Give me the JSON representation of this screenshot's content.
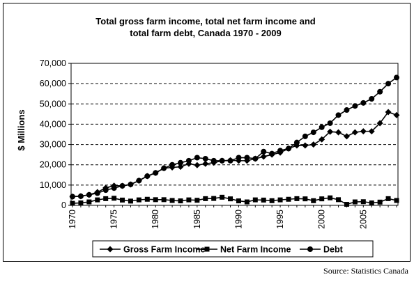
{
  "chart_data": {
    "type": "line",
    "title_lines": [
      "Total gross farm income, total net farm income and",
      "total farm debt, Canada 1970 - 2009"
    ],
    "ylabel": "$ Millions",
    "xlabel": "",
    "ylim": [
      0,
      70000
    ],
    "yticks": [
      0,
      10000,
      20000,
      30000,
      40000,
      50000,
      60000,
      70000
    ],
    "ytick_labels": [
      "0",
      "10,000",
      "20,000",
      "30,000",
      "40,000",
      "50,000",
      "60,000",
      "70,000"
    ],
    "xlim": [
      1970,
      2009
    ],
    "xticks": [
      1970,
      1975,
      1980,
      1985,
      1990,
      1995,
      2000,
      2005
    ],
    "xtick_labels": [
      "1970",
      "1975",
      "1980",
      "1985",
      "1990",
      "1995",
      "2000",
      "2005"
    ],
    "grid": "horizontal dashed",
    "legend_position": "bottom",
    "x": [
      1970,
      1971,
      1972,
      1973,
      1974,
      1975,
      1976,
      1977,
      1978,
      1979,
      1980,
      1981,
      1982,
      1983,
      1984,
      1985,
      1986,
      1987,
      1988,
      1989,
      1990,
      1991,
      1992,
      1993,
      1994,
      1995,
      1996,
      1997,
      1998,
      1999,
      2000,
      2001,
      2002,
      2003,
      2004,
      2005,
      2006,
      2007,
      2008,
      2009
    ],
    "series": [
      {
        "name": "Gross Farm Income",
        "marker": "diamond",
        "values": [
          4300,
          4500,
          5200,
          6500,
          8600,
          9700,
          9600,
          10300,
          12200,
          14400,
          16000,
          18300,
          18700,
          19000,
          20500,
          19800,
          20500,
          21000,
          22000,
          22200,
          22000,
          22000,
          23000,
          24000,
          25000,
          26000,
          28000,
          29500,
          29500,
          30000,
          32500,
          36300,
          36000,
          34000,
          36000,
          36500,
          36500,
          40500,
          46000,
          44500
        ]
      },
      {
        "name": "Net Farm Income",
        "marker": "square",
        "values": [
          1000,
          1200,
          1700,
          2700,
          3300,
          3500,
          2600,
          2100,
          2700,
          3000,
          2800,
          2800,
          2400,
          2200,
          2700,
          2500,
          3300,
          3400,
          4000,
          3200,
          2200,
          1700,
          2700,
          2600,
          2300,
          2700,
          3000,
          3300,
          3200,
          2300,
          3200,
          3700,
          2800,
          500,
          1700,
          1800,
          1200,
          1600,
          3300,
          2400
        ]
      },
      {
        "name": "Debt",
        "marker": "circle",
        "values": [
          4300,
          4500,
          5200,
          6000,
          7500,
          8500,
          9600,
          10300,
          12200,
          14400,
          16000,
          18300,
          20000,
          21000,
          22000,
          23500,
          23000,
          22000,
          22000,
          22000,
          23500,
          23500,
          23000,
          26500,
          25500,
          27000,
          28000,
          31000,
          34000,
          36000,
          38500,
          40500,
          44500,
          47000,
          49000,
          50500,
          52500,
          56000,
          60000,
          63000
        ]
      }
    ]
  },
  "source_note": "Source: Statistics Canada"
}
